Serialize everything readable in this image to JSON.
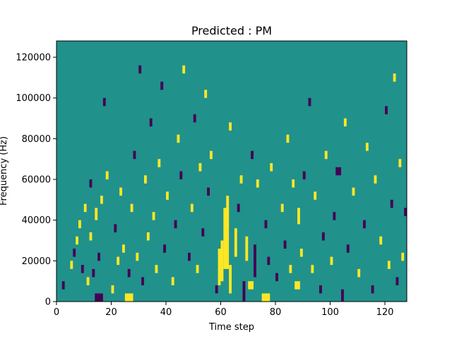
{
  "chart_data": {
    "type": "heatmap",
    "title": "Predicted : PM",
    "xlabel": "Time step",
    "ylabel": "Frequency (Hz)",
    "xlim": [
      0,
      128
    ],
    "ylim": [
      0,
      128000
    ],
    "grid": false,
    "colormap": "viridis",
    "background_value": 0,
    "colors": {
      "low": "#440154",
      "mid": "#21918c",
      "high": "#fde725"
    },
    "x_ticks": [
      0,
      20,
      40,
      60,
      80,
      100,
      120
    ],
    "x_tick_labels": [
      "0",
      "20",
      "40",
      "60",
      "80",
      "100",
      "120"
    ],
    "y_ticks": [
      0,
      20000,
      40000,
      60000,
      80000,
      100000,
      120000
    ],
    "y_tick_labels": [
      "0",
      "20000",
      "40000",
      "60000",
      "80000",
      "100000",
      "120000"
    ],
    "cells": [
      {
        "x": 2,
        "y": 6000,
        "w": 1,
        "h": 4000,
        "v": -1
      },
      {
        "x": 5,
        "y": 16000,
        "w": 1,
        "h": 4000,
        "v": 1
      },
      {
        "x": 6,
        "y": 22000,
        "w": 1,
        "h": 4000,
        "v": -1
      },
      {
        "x": 7,
        "y": 28000,
        "w": 1,
        "h": 4000,
        "v": 1
      },
      {
        "x": 8,
        "y": 36000,
        "w": 1,
        "h": 4000,
        "v": 1
      },
      {
        "x": 9,
        "y": 14000,
        "w": 1,
        "h": 4000,
        "v": -1
      },
      {
        "x": 10,
        "y": 44000,
        "w": 1,
        "h": 4000,
        "v": 1
      },
      {
        "x": 11,
        "y": 8000,
        "w": 1,
        "h": 4000,
        "v": 1
      },
      {
        "x": 12,
        "y": 30000,
        "w": 1,
        "h": 4000,
        "v": 1
      },
      {
        "x": 12,
        "y": 56000,
        "w": 1,
        "h": 4000,
        "v": -1
      },
      {
        "x": 13,
        "y": 12000,
        "w": 1,
        "h": 4000,
        "v": -1
      },
      {
        "x": 14,
        "y": 0,
        "w": 3,
        "h": 4000,
        "v": -1
      },
      {
        "x": 14,
        "y": 40000,
        "w": 1,
        "h": 6000,
        "v": 1
      },
      {
        "x": 15,
        "y": 20000,
        "w": 1,
        "h": 4000,
        "v": -1
      },
      {
        "x": 16,
        "y": 48000,
        "w": 1,
        "h": 4000,
        "v": 1
      },
      {
        "x": 17,
        "y": 96000,
        "w": 1,
        "h": 4000,
        "v": -1
      },
      {
        "x": 18,
        "y": 60000,
        "w": 1,
        "h": 4000,
        "v": 1
      },
      {
        "x": 20,
        "y": 4000,
        "w": 1,
        "h": 4000,
        "v": 1
      },
      {
        "x": 21,
        "y": 34000,
        "w": 1,
        "h": 4000,
        "v": -1
      },
      {
        "x": 22,
        "y": 18000,
        "w": 1,
        "h": 4000,
        "v": 1
      },
      {
        "x": 23,
        "y": 52000,
        "w": 1,
        "h": 4000,
        "v": 1
      },
      {
        "x": 24,
        "y": 24000,
        "w": 1,
        "h": 4000,
        "v": 1
      },
      {
        "x": 25,
        "y": 0,
        "w": 3,
        "h": 4000,
        "v": 1
      },
      {
        "x": 26,
        "y": 12000,
        "w": 1,
        "h": 4000,
        "v": -1
      },
      {
        "x": 27,
        "y": 44000,
        "w": 1,
        "h": 4000,
        "v": 1
      },
      {
        "x": 28,
        "y": 70000,
        "w": 1,
        "h": 4000,
        "v": -1
      },
      {
        "x": 29,
        "y": 20000,
        "w": 1,
        "h": 4000,
        "v": 1
      },
      {
        "x": 30,
        "y": 112000,
        "w": 1,
        "h": 4000,
        "v": -1
      },
      {
        "x": 31,
        "y": 8000,
        "w": 1,
        "h": 4000,
        "v": -1
      },
      {
        "x": 32,
        "y": 58000,
        "w": 1,
        "h": 4000,
        "v": 1
      },
      {
        "x": 33,
        "y": 30000,
        "w": 1,
        "h": 4000,
        "v": 1
      },
      {
        "x": 34,
        "y": 86000,
        "w": 1,
        "h": 4000,
        "v": -1
      },
      {
        "x": 35,
        "y": 40000,
        "w": 1,
        "h": 4000,
        "v": 1
      },
      {
        "x": 36,
        "y": 14000,
        "w": 1,
        "h": 4000,
        "v": 1
      },
      {
        "x": 37,
        "y": 66000,
        "w": 1,
        "h": 4000,
        "v": 1
      },
      {
        "x": 38,
        "y": 104000,
        "w": 1,
        "h": 4000,
        "v": -1
      },
      {
        "x": 39,
        "y": 24000,
        "w": 1,
        "h": 4000,
        "v": -1
      },
      {
        "x": 40,
        "y": 50000,
        "w": 1,
        "h": 4000,
        "v": 1
      },
      {
        "x": 42,
        "y": 8000,
        "w": 1,
        "h": 4000,
        "v": 1
      },
      {
        "x": 43,
        "y": 36000,
        "w": 1,
        "h": 4000,
        "v": -1
      },
      {
        "x": 44,
        "y": 78000,
        "w": 1,
        "h": 4000,
        "v": 1
      },
      {
        "x": 45,
        "y": 60000,
        "w": 1,
        "h": 4000,
        "v": -1
      },
      {
        "x": 46,
        "y": 112000,
        "w": 1,
        "h": 4000,
        "v": 1
      },
      {
        "x": 48,
        "y": 20000,
        "w": 1,
        "h": 4000,
        "v": -1
      },
      {
        "x": 49,
        "y": 44000,
        "w": 1,
        "h": 4000,
        "v": 1
      },
      {
        "x": 50,
        "y": 88000,
        "w": 1,
        "h": 4000,
        "v": -1
      },
      {
        "x": 51,
        "y": 14000,
        "w": 1,
        "h": 4000,
        "v": 1
      },
      {
        "x": 52,
        "y": 64000,
        "w": 1,
        "h": 4000,
        "v": 1
      },
      {
        "x": 53,
        "y": 32000,
        "w": 1,
        "h": 4000,
        "v": -1
      },
      {
        "x": 54,
        "y": 100000,
        "w": 1,
        "h": 4000,
        "v": 1
      },
      {
        "x": 55,
        "y": 52000,
        "w": 1,
        "h": 4000,
        "v": -1
      },
      {
        "x": 56,
        "y": 70000,
        "w": 1,
        "h": 4000,
        "v": 1
      },
      {
        "x": 58,
        "y": 4000,
        "w": 1,
        "h": 4000,
        "v": -1
      },
      {
        "x": 59,
        "y": 8000,
        "w": 1,
        "h": 18000,
        "v": 1
      },
      {
        "x": 60,
        "y": 10000,
        "w": 1,
        "h": 20000,
        "v": 1
      },
      {
        "x": 61,
        "y": 16000,
        "w": 2,
        "h": 30000,
        "v": 1
      },
      {
        "x": 62,
        "y": 36000,
        "w": 1,
        "h": 16000,
        "v": 1
      },
      {
        "x": 63,
        "y": 4000,
        "w": 1,
        "h": 14000,
        "v": 1
      },
      {
        "x": 63,
        "y": 84000,
        "w": 1,
        "h": 4000,
        "v": 1
      },
      {
        "x": 65,
        "y": 22000,
        "w": 1,
        "h": 14000,
        "v": 1
      },
      {
        "x": 66,
        "y": 44000,
        "w": 1,
        "h": 4000,
        "v": -1
      },
      {
        "x": 67,
        "y": 58000,
        "w": 1,
        "h": 4000,
        "v": 1
      },
      {
        "x": 68,
        "y": 0,
        "w": 1,
        "h": 10000,
        "v": -1
      },
      {
        "x": 69,
        "y": 20000,
        "w": 1,
        "h": 12000,
        "v": 1
      },
      {
        "x": 70,
        "y": 6000,
        "w": 2,
        "h": 4000,
        "v": 1
      },
      {
        "x": 71,
        "y": 70000,
        "w": 1,
        "h": 4000,
        "v": -1
      },
      {
        "x": 72,
        "y": 12000,
        "w": 1,
        "h": 16000,
        "v": -1
      },
      {
        "x": 73,
        "y": 56000,
        "w": 1,
        "h": 4000,
        "v": 1
      },
      {
        "x": 75,
        "y": 0,
        "w": 3,
        "h": 4000,
        "v": 1
      },
      {
        "x": 76,
        "y": 36000,
        "w": 1,
        "h": 4000,
        "v": -1
      },
      {
        "x": 77,
        "y": 18000,
        "w": 1,
        "h": 4000,
        "v": -1
      },
      {
        "x": 78,
        "y": 64000,
        "w": 1,
        "h": 4000,
        "v": 1
      },
      {
        "x": 80,
        "y": 10000,
        "w": 1,
        "h": 4000,
        "v": -1
      },
      {
        "x": 82,
        "y": 44000,
        "w": 1,
        "h": 4000,
        "v": 1
      },
      {
        "x": 83,
        "y": 26000,
        "w": 1,
        "h": 4000,
        "v": -1
      },
      {
        "x": 84,
        "y": 78000,
        "w": 1,
        "h": 4000,
        "v": 1
      },
      {
        "x": 85,
        "y": 14000,
        "w": 1,
        "h": 4000,
        "v": 1
      },
      {
        "x": 86,
        "y": 56000,
        "w": 1,
        "h": 4000,
        "v": 1
      },
      {
        "x": 87,
        "y": 6000,
        "w": 2,
        "h": 4000,
        "v": 1
      },
      {
        "x": 88,
        "y": 38000,
        "w": 1,
        "h": 8000,
        "v": 1
      },
      {
        "x": 89,
        "y": 22000,
        "w": 1,
        "h": 4000,
        "v": 1
      },
      {
        "x": 90,
        "y": 60000,
        "w": 1,
        "h": 4000,
        "v": -1
      },
      {
        "x": 92,
        "y": 96000,
        "w": 1,
        "h": 4000,
        "v": -1
      },
      {
        "x": 93,
        "y": 14000,
        "w": 1,
        "h": 4000,
        "v": 1
      },
      {
        "x": 94,
        "y": 50000,
        "w": 1,
        "h": 4000,
        "v": 1
      },
      {
        "x": 96,
        "y": 4000,
        "w": 1,
        "h": 4000,
        "v": -1
      },
      {
        "x": 97,
        "y": 30000,
        "w": 1,
        "h": 4000,
        "v": -1
      },
      {
        "x": 98,
        "y": 70000,
        "w": 1,
        "h": 4000,
        "v": 1
      },
      {
        "x": 100,
        "y": 18000,
        "w": 1,
        "h": 4000,
        "v": 1
      },
      {
        "x": 101,
        "y": 40000,
        "w": 1,
        "h": 4000,
        "v": -1
      },
      {
        "x": 102,
        "y": 62000,
        "w": 2,
        "h": 4000,
        "v": -1
      },
      {
        "x": 104,
        "y": 0,
        "w": 1,
        "h": 6000,
        "v": -1
      },
      {
        "x": 105,
        "y": 86000,
        "w": 1,
        "h": 4000,
        "v": 1
      },
      {
        "x": 106,
        "y": 24000,
        "w": 1,
        "h": 4000,
        "v": -1
      },
      {
        "x": 108,
        "y": 52000,
        "w": 1,
        "h": 4000,
        "v": 1
      },
      {
        "x": 110,
        "y": 12000,
        "w": 1,
        "h": 4000,
        "v": 1
      },
      {
        "x": 112,
        "y": 36000,
        "w": 1,
        "h": 4000,
        "v": -1
      },
      {
        "x": 113,
        "y": 74000,
        "w": 1,
        "h": 4000,
        "v": 1
      },
      {
        "x": 115,
        "y": 4000,
        "w": 1,
        "h": 4000,
        "v": -1
      },
      {
        "x": 116,
        "y": 58000,
        "w": 1,
        "h": 4000,
        "v": 1
      },
      {
        "x": 118,
        "y": 28000,
        "w": 1,
        "h": 4000,
        "v": 1
      },
      {
        "x": 120,
        "y": 92000,
        "w": 1,
        "h": 4000,
        "v": -1
      },
      {
        "x": 121,
        "y": 16000,
        "w": 1,
        "h": 4000,
        "v": 1
      },
      {
        "x": 122,
        "y": 46000,
        "w": 1,
        "h": 4000,
        "v": -1
      },
      {
        "x": 123,
        "y": 108000,
        "w": 1,
        "h": 4000,
        "v": 1
      },
      {
        "x": 124,
        "y": 8000,
        "w": 1,
        "h": 4000,
        "v": -1
      },
      {
        "x": 125,
        "y": 66000,
        "w": 1,
        "h": 4000,
        "v": 1
      },
      {
        "x": 126,
        "y": 20000,
        "w": 1,
        "h": 4000,
        "v": 1
      },
      {
        "x": 127,
        "y": 42000,
        "w": 1,
        "h": 4000,
        "v": -1
      }
    ]
  }
}
